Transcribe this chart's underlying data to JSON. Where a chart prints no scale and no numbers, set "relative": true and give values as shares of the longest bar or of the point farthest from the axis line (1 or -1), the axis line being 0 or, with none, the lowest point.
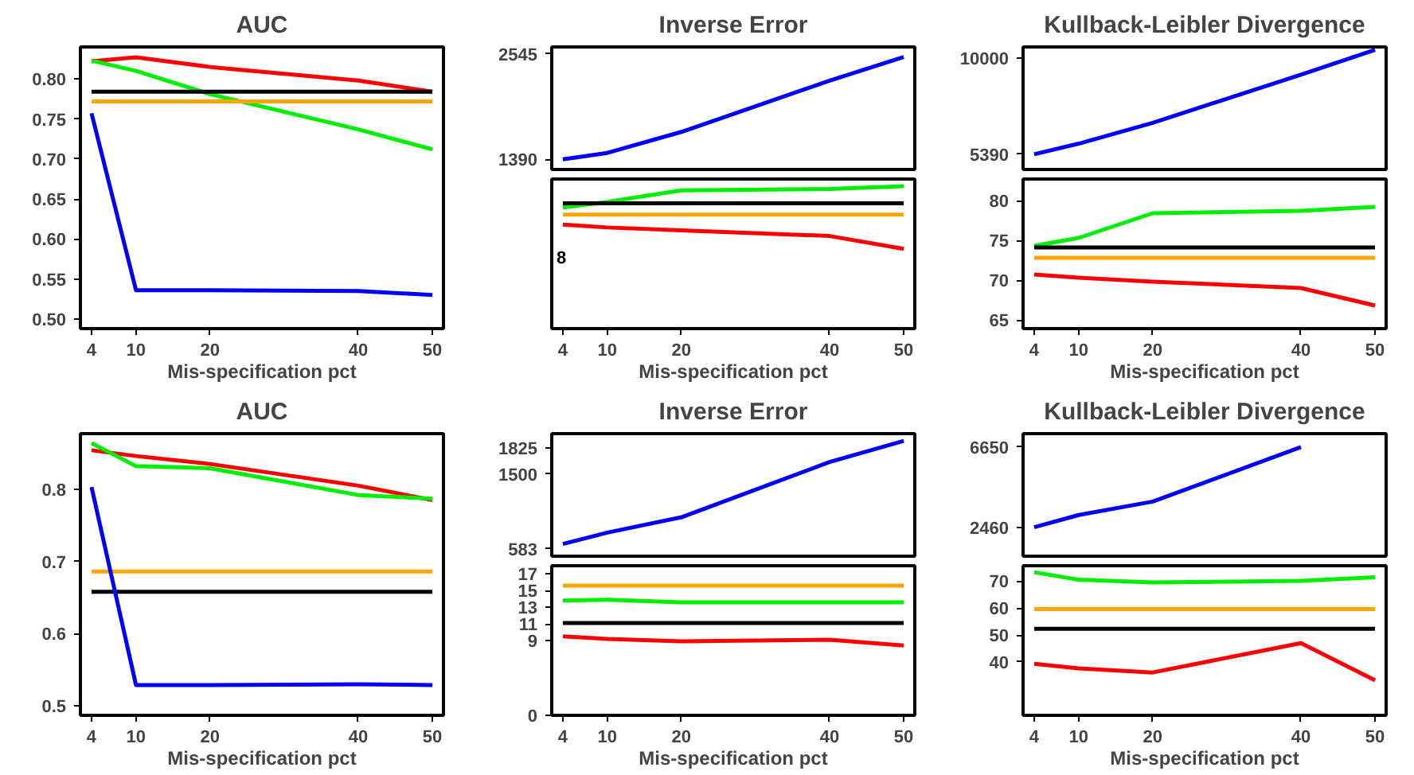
{
  "chart_data": [
    {
      "type": "line",
      "title": "AUC",
      "xlabel": "Mis-specification pct",
      "x": [
        4,
        10,
        20,
        40,
        50
      ],
      "xlim": [
        2.5,
        51.5
      ],
      "xticks": [
        4,
        10,
        20,
        40,
        50
      ],
      "ylim": [
        0.488,
        0.84
      ],
      "yticks": [
        {
          "value": 0.5,
          "label": "0.50"
        },
        {
          "value": 0.55,
          "label": "0.55"
        },
        {
          "value": 0.6,
          "label": "0.60"
        },
        {
          "value": 0.65,
          "label": "0.65"
        },
        {
          "value": 0.7,
          "label": "0.70"
        },
        {
          "value": 0.75,
          "label": "0.75"
        },
        {
          "value": 0.8,
          "label": "0.80"
        }
      ],
      "series": [
        {
          "color": "#ff0000",
          "values": [
            0.822,
            0.827,
            0.815,
            0.798,
            0.784
          ]
        },
        {
          "color": "#00ee00",
          "values": [
            0.823,
            0.81,
            0.781,
            0.737,
            0.712
          ]
        },
        {
          "color": "#000000",
          "values": [
            0.784,
            0.784,
            0.784,
            0.784,
            0.784
          ]
        },
        {
          "color": "#ffa500",
          "values": [
            0.772,
            0.772,
            0.772,
            0.772,
            0.772
          ]
        },
        {
          "color": "#0000ff",
          "values": [
            0.757,
            0.536,
            0.536,
            0.535,
            0.53
          ]
        }
      ]
    },
    {
      "type": "line",
      "title": "Inverse Error",
      "x": [
        4,
        10,
        20,
        40,
        50
      ],
      "xlim": [
        2.5,
        51.5
      ],
      "ylim": [
        1279,
        2619
      ],
      "yticks": [
        1390,
        2545
      ],
      "tick_labels": "y",
      "series": [
        {
          "color": "#0000ff",
          "values": [
            1390,
            1460,
            1690,
            2250,
            2510
          ]
        }
      ]
    },
    {
      "type": "line",
      "xlabel": "Mis-specification pct",
      "x": [
        4,
        10,
        20,
        40,
        50
      ],
      "xlim": [
        2.5,
        51.5
      ],
      "xticks": [
        4,
        10,
        20,
        40,
        50
      ],
      "relative": true,
      "annotations": [
        "8"
      ],
      "series": [
        {
          "color": "#ff0000",
          "values": [
            0.73,
            0.71,
            0.69,
            0.65,
            0.56
          ]
        },
        {
          "color": "#00ee00",
          "values": [
            0.85,
            0.89,
            0.97,
            0.98,
            1
          ]
        },
        {
          "color": "#000000",
          "values": [
            0.88,
            0.88,
            0.88,
            0.88,
            0.88
          ]
        },
        {
          "color": "#ffa500",
          "values": [
            0.8,
            0.8,
            0.8,
            0.8,
            0.8
          ]
        }
      ]
    },
    {
      "type": "line",
      "title": "Kullback-Leibler Divergence",
      "x": [
        4,
        10,
        20,
        40,
        50
      ],
      "xlim": [
        2.5,
        51.5
      ],
      "ylim": [
        4662,
        10534
      ],
      "yticks": [
        5390,
        10000
      ],
      "tick_labels": "y",
      "series": [
        {
          "color": "#0000ff",
          "values": [
            5390,
            5900,
            6900,
            9200,
            10400
          ]
        }
      ]
    },
    {
      "type": "line",
      "xlabel": "Mis-specification pct",
      "x": [
        4,
        10,
        20,
        40,
        50
      ],
      "xlim": [
        2.5,
        51.5
      ],
      "xticks": [
        4,
        10,
        20,
        40,
        50
      ],
      "ylim": [
        63.9,
        82.7
      ],
      "yticks": [
        65,
        70,
        75,
        80
      ],
      "series": [
        {
          "color": "#ff0000",
          "values": [
            70.7,
            70.3,
            69.8,
            69.0,
            66.8
          ]
        },
        {
          "color": "#00ee00",
          "values": [
            74.3,
            75.3,
            78.4,
            78.7,
            79.2
          ]
        },
        {
          "color": "#000000",
          "values": [
            74.1,
            74.1,
            74.1,
            74.1,
            74.1
          ]
        },
        {
          "color": "#ffa500",
          "values": [
            72.8,
            72.8,
            72.8,
            72.8,
            72.8
          ]
        }
      ]
    },
    {
      "type": "line",
      "title": "AUC",
      "xlabel": "Mis-specification pct",
      "x": [
        4,
        10,
        20,
        40,
        50
      ],
      "xlim": [
        2.5,
        51.5
      ],
      "xticks": [
        4,
        10,
        20,
        40,
        50
      ],
      "ylim": [
        0.487,
        0.877
      ],
      "yticks": [
        0.5,
        0.6,
        0.7,
        0.8
      ],
      "series": [
        {
          "color": "#ff0000",
          "values": [
            0.854,
            0.846,
            0.835,
            0.805,
            0.785
          ]
        },
        {
          "color": "#00ee00",
          "values": [
            0.864,
            0.832,
            0.829,
            0.792,
            0.787
          ]
        },
        {
          "color": "#ffa500",
          "values": [
            0.686,
            0.686,
            0.686,
            0.686,
            0.686
          ]
        },
        {
          "color": "#000000",
          "values": [
            0.658,
            0.658,
            0.658,
            0.658,
            0.658
          ]
        },
        {
          "color": "#0000ff",
          "values": [
            0.803,
            0.529,
            0.529,
            0.53,
            0.529
          ]
        }
      ]
    },
    {
      "type": "line",
      "title": "Inverse Error",
      "x": [
        4,
        10,
        20,
        40,
        50
      ],
      "xlim": [
        2.5,
        51.5
      ],
      "ylim": [
        490,
        2000
      ],
      "yticks": [
        583,
        1500,
        1825
      ],
      "tick_labels": "y",
      "series": [
        {
          "color": "#0000ff",
          "values": [
            640,
            780,
            970,
            1650,
            1910
          ]
        }
      ]
    },
    {
      "type": "line",
      "xlabel": "Mis-specification pct",
      "x": [
        4,
        10,
        20,
        40,
        50
      ],
      "xlim": [
        2.5,
        51.5
      ],
      "xticks": [
        4,
        10,
        20,
        40,
        50
      ],
      "ylim": [
        0,
        18
      ],
      "yticks": [
        0,
        9,
        11,
        13,
        15,
        17
      ],
      "series": [
        {
          "color": "#ffa500",
          "values": [
            15.6,
            15.6,
            15.6,
            15.6,
            15.6
          ]
        },
        {
          "color": "#00ee00",
          "values": [
            13.8,
            13.9,
            13.6,
            13.6,
            13.6
          ]
        },
        {
          "color": "#000000",
          "values": [
            11.1,
            11.1,
            11.1,
            11.1,
            11.1
          ]
        },
        {
          "color": "#ff0000",
          "values": [
            9.5,
            9.2,
            8.9,
            9.1,
            8.4
          ]
        }
      ]
    },
    {
      "type": "line",
      "title": "Kullback-Leibler Divergence",
      "xlim": [
        2.5,
        51.5
      ],
      "ylim": [
        946,
        7354
      ],
      "yticks": [
        2460,
        6650
      ],
      "tick_labels": "y",
      "series": [
        {
          "color": "#0000ff",
          "x": [
            4,
            10,
            20,
            40
          ],
          "values": [
            2460,
            3100,
            3800,
            6650
          ]
        }
      ]
    },
    {
      "type": "line",
      "xlabel": "Mis-specification pct",
      "x": [
        4,
        10,
        20,
        40,
        50
      ],
      "xlim": [
        2.5,
        51.5
      ],
      "xticks": [
        4,
        10,
        20,
        40,
        50
      ],
      "ylim": [
        20.2,
        75.7
      ],
      "yticks": [
        40,
        50,
        60,
        70
      ],
      "annotations": [
        "10"
      ],
      "series": [
        {
          "color": "#00ee00",
          "values": [
            73.3,
            70.5,
            69.5,
            70.1,
            71.4
          ]
        },
        {
          "color": "#ffa500",
          "values": [
            59.6,
            59.6,
            59.6,
            59.6,
            59.6
          ]
        },
        {
          "color": "#000000",
          "values": [
            52.3,
            52.3,
            52.3,
            52.3,
            52.3
          ]
        },
        {
          "color": "#ff0000",
          "values": [
            39.3,
            37.6,
            36.1,
            47.0,
            33.2
          ]
        }
      ]
    }
  ]
}
